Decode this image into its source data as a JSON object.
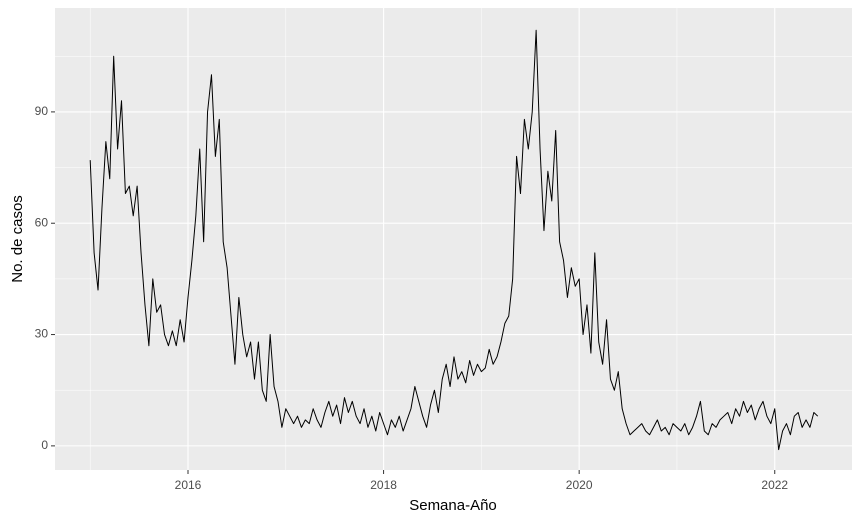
{
  "chart_data": {
    "type": "line",
    "xlabel": "Semana-Año",
    "ylabel": "No. de casos",
    "x": [
      2015,
      2015.04,
      2015.08,
      2015.12,
      2015.16,
      2015.2,
      2015.24,
      2015.28,
      2015.32,
      2015.36,
      2015.4,
      2015.44,
      2015.48,
      2015.52,
      2015.56,
      2015.6,
      2015.64,
      2015.68,
      2015.72,
      2015.76,
      2015.8,
      2015.84,
      2015.88,
      2015.92,
      2015.96,
      2016,
      2016.04,
      2016.08,
      2016.12,
      2016.16,
      2016.2,
      2016.24,
      2016.28,
      2016.32,
      2016.36,
      2016.4,
      2016.44,
      2016.48,
      2016.52,
      2016.56,
      2016.6,
      2016.64,
      2016.68,
      2016.72,
      2016.76,
      2016.8,
      2016.84,
      2016.88,
      2016.92,
      2016.96,
      2017,
      2017.04,
      2017.08,
      2017.12,
      2017.16,
      2017.2,
      2017.24,
      2017.28,
      2017.32,
      2017.36,
      2017.4,
      2017.44,
      2017.48,
      2017.52,
      2017.56,
      2017.6,
      2017.64,
      2017.68,
      2017.72,
      2017.76,
      2017.8,
      2017.84,
      2017.88,
      2017.92,
      2017.96,
      2018,
      2018.04,
      2018.08,
      2018.12,
      2018.16,
      2018.2,
      2018.24,
      2018.28,
      2018.32,
      2018.36,
      2018.4,
      2018.44,
      2018.48,
      2018.52,
      2018.56,
      2018.6,
      2018.64,
      2018.68,
      2018.72,
      2018.76,
      2018.8,
      2018.84,
      2018.88,
      2018.92,
      2018.96,
      2019,
      2019.04,
      2019.08,
      2019.12,
      2019.16,
      2019.2,
      2019.24,
      2019.28,
      2019.32,
      2019.36,
      2019.4,
      2019.44,
      2019.48,
      2019.52,
      2019.56,
      2019.6,
      2019.64,
      2019.68,
      2019.72,
      2019.76,
      2019.8,
      2019.84,
      2019.88,
      2019.92,
      2019.96,
      2020,
      2020.04,
      2020.08,
      2020.12,
      2020.16,
      2020.2,
      2020.24,
      2020.28,
      2020.32,
      2020.36,
      2020.4,
      2020.44,
      2020.48,
      2020.52,
      2020.56,
      2020.6,
      2020.64,
      2020.68,
      2020.72,
      2020.76,
      2020.8,
      2020.84,
      2020.88,
      2020.92,
      2020.96,
      2021,
      2021.04,
      2021.08,
      2021.12,
      2021.16,
      2021.2,
      2021.24,
      2021.28,
      2021.32,
      2021.36,
      2021.4,
      2021.44,
      2021.48,
      2021.52,
      2021.56,
      2021.6,
      2021.64,
      2021.68,
      2021.72,
      2021.76,
      2021.8,
      2021.84,
      2021.88,
      2021.92,
      2021.96,
      2022,
      2022.04,
      2022.08,
      2022.12,
      2022.16,
      2022.2,
      2022.24,
      2022.28,
      2022.32,
      2022.36,
      2022.4,
      2022.44
    ],
    "values": [
      77,
      52,
      42,
      64,
      82,
      72,
      105,
      80,
      93,
      68,
      70,
      62,
      70,
      52,
      38,
      27,
      45,
      36,
      38,
      30,
      27,
      31,
      27,
      34,
      28,
      40,
      50,
      62,
      80,
      55,
      90,
      100,
      78,
      88,
      55,
      48,
      35,
      22,
      40,
      30,
      24,
      28,
      18,
      28,
      15,
      12,
      30,
      16,
      12,
      5,
      10,
      8,
      6,
      8,
      5,
      7,
      6,
      10,
      7,
      5,
      9,
      12,
      8,
      11,
      6,
      13,
      9,
      12,
      8,
      6,
      10,
      5,
      8,
      4,
      9,
      6,
      3,
      7,
      5,
      8,
      4,
      7,
      10,
      16,
      12,
      8,
      5,
      11,
      15,
      9,
      18,
      22,
      16,
      24,
      18,
      20,
      17,
      23,
      19,
      22,
      20,
      21,
      26,
      22,
      24,
      28,
      33,
      35,
      45,
      78,
      68,
      88,
      80,
      90,
      112,
      80,
      58,
      74,
      66,
      85,
      55,
      50,
      40,
      48,
      43,
      45,
      30,
      38,
      25,
      52,
      28,
      22,
      34,
      18,
      15,
      20,
      10,
      6,
      3,
      4,
      5,
      6,
      4,
      3,
      5,
      7,
      4,
      5,
      3,
      6,
      5,
      4,
      6,
      3,
      5,
      8,
      12,
      4,
      3,
      6,
      5,
      7,
      8,
      9,
      6,
      10,
      8,
      12,
      9,
      11,
      7,
      10,
      12,
      8,
      6,
      10,
      -1,
      4,
      6,
      3,
      8,
      9,
      5,
      7,
      5,
      9,
      8
    ],
    "color": "#000000",
    "xlim": [
      2014.64,
      2022.79
    ],
    "xticks": [
      2016,
      2018,
      2020,
      2022
    ],
    "ylim": [
      -6.5,
      118
    ],
    "yticks": [
      0,
      30,
      60,
      90
    ],
    "grid": true
  }
}
